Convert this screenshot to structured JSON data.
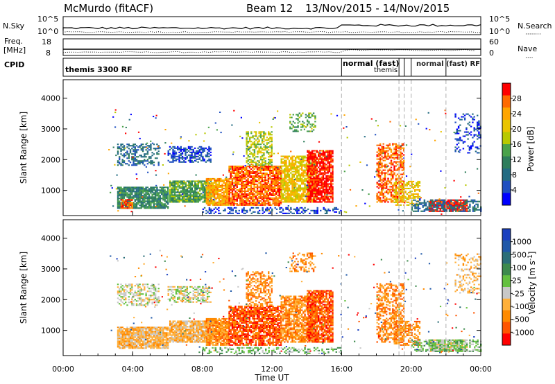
{
  "header": {
    "station": "McMurdo (fitACF)",
    "beam": "Beam 12",
    "dates": "13/Nov/2015 - 14/Nov/2015"
  },
  "chart_data": [
    {
      "type": "line",
      "name": "noise-panel",
      "left_label": "N.Sky",
      "right_label": "N.Search",
      "left_ticks": [
        "10^5",
        "10^0"
      ],
      "right_ticks": [
        "10^5",
        "10^0"
      ]
    },
    {
      "type": "line",
      "name": "freq-nave-panel",
      "left_label_1": "Freq.",
      "left_label_2": "[MHz]",
      "right_label": "Nave",
      "left_ticks": [
        "18",
        "8"
      ],
      "right_ticks": [
        "60",
        "0"
      ],
      "freq_mhz_range": [
        8,
        18
      ],
      "nave_range": [
        0,
        60
      ]
    },
    {
      "type": "table",
      "name": "cpid-panel",
      "label": "CPID",
      "programs": [
        {
          "start_hour": 0,
          "text": "themis 3300 RF"
        },
        {
          "start_hour": 16,
          "text": "normal (fast)"
        },
        {
          "start_hour": 19,
          "text": "themis"
        }
      ],
      "overlap_text": "normal (fast) RF"
    },
    {
      "type": "heatmap",
      "name": "power-panel",
      "ylabel": "Slant Range [km]",
      "yticks": [
        1000,
        2000,
        3000,
        4000
      ],
      "ylim": [
        180,
        4600
      ],
      "colorbar_label": "Power [dB]",
      "colorbar_ticks": [
        "28",
        "24",
        "20",
        "16",
        "12",
        "8",
        "4"
      ],
      "colorbar_colors": [
        "#ff0000",
        "#ff6a00",
        "#ffa500",
        "#e9c400",
        "#b8c900",
        "#4aa24a",
        "#2e7d5b",
        "#236b82",
        "#1f4fc0",
        "#0000ff"
      ],
      "vertical_dashes_hours": [
        16,
        19.3,
        19.6,
        20.0,
        22.0
      ]
    },
    {
      "type": "heatmap",
      "name": "velocity-panel",
      "ylabel": "Slant Range [km]",
      "yticks": [
        1000,
        2000,
        3000,
        4000
      ],
      "ylim": [
        180,
        4600
      ],
      "colorbar_label": "Velocity [m s^-1]",
      "colorbar_ticks": [
        "1000",
        "500",
        "100",
        "25",
        "-25",
        "-100",
        "-500",
        "-1000"
      ],
      "colorbar_colors": [
        "#1a3fbf",
        "#1f58a8",
        "#2b6e78",
        "#3d8a4d",
        "#64c040",
        "#c8c8c8",
        "#ffb03a",
        "#ff8a00",
        "#ff5500",
        "#ff0000"
      ]
    }
  ],
  "xaxis": {
    "label": "Time UT",
    "ticks": [
      "00:00",
      "04:00",
      "08:00",
      "12:00",
      "16:00",
      "20:00",
      "00:00"
    ],
    "range_hours": [
      0,
      24
    ]
  }
}
